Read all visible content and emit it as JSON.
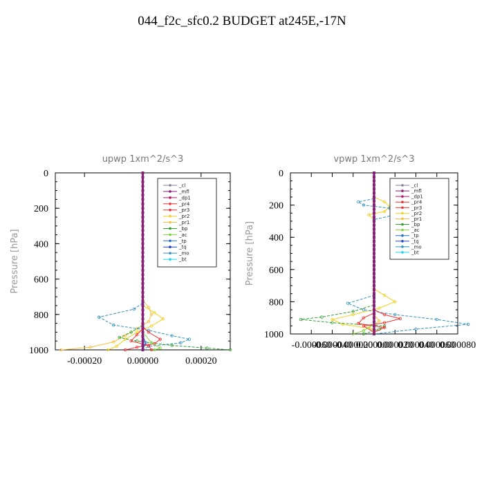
{
  "title": "044_f2c_sfc0.2  BUDGET at245E,-17N",
  "colors": {
    "_cl": "#7f7f9f",
    "_mfl": "#8a1f7a",
    "_dp1": "#c01060",
    "_pr4": "#ee3030",
    "_pr3": "#ee3030",
    "_pr2": "#f0d020",
    "_pr1": "#f5c040",
    "_bp": "#30a030",
    "_ac": "#80d040",
    "_tp": "#2070c0",
    "_tq": "#2040c0",
    "_mo": "#3090c0",
    "_bt": "#20d0f0"
  },
  "chart_data": [
    {
      "type": "line",
      "title": "upwp    1xm^2/s^3",
      "ylabel": "Pressure [hPa]",
      "ylim": [
        0,
        1000
      ],
      "yticks": [
        "0",
        "200",
        "400",
        "600",
        "800",
        "1000"
      ],
      "xlim": [
        -0.0003,
        0.0003
      ],
      "xticks": [
        "-0.00020",
        "0.00000",
        "0.00020"
      ],
      "xtick_values": [
        -0.0002,
        0,
        0.0002
      ],
      "legend": [
        "_cl",
        "_mfl",
        "_dp1",
        "_pr4",
        "_pr3",
        "_pr2",
        "_pr1",
        "_bp",
        "_ac",
        "_tp",
        "_tq",
        "_mo",
        "_bt"
      ],
      "legend_placement": "top-right",
      "series": [
        {
          "name": "_pr1",
          "points": [
            [
              0,
              720
            ],
            [
              2e-05,
              760
            ],
            [
              3e-05,
              800
            ],
            [
              2e-05,
              840
            ],
            [
              -2e-05,
              880
            ],
            [
              -6e-05,
              920
            ],
            [
              -0.0001,
              955
            ],
            [
              -0.00018,
              985
            ],
            [
              -0.00028,
              1000
            ]
          ]
        },
        {
          "name": "_pr2",
          "points": [
            [
              0,
              750
            ],
            [
              4e-05,
              790
            ],
            [
              7e-05,
              825
            ],
            [
              3e-05,
              865
            ],
            [
              -2e-05,
              900
            ],
            [
              -6e-05,
              940
            ],
            [
              -9e-05,
              980
            ],
            [
              -0.00012,
              1000
            ]
          ]
        },
        {
          "name": "_mo",
          "points": [
            [
              0,
              735
            ],
            [
              -3e-05,
              770
            ],
            [
              -0.00015,
              815
            ],
            [
              -0.0001,
              860
            ],
            [
              2e-05,
              890
            ],
            [
              0.0001,
              920
            ],
            [
              0.00016,
              940
            ],
            [
              0.00013,
              960
            ],
            [
              2e-05,
              980
            ],
            [
              0,
              1000
            ]
          ]
        },
        {
          "name": "_bp",
          "points": [
            [
              0,
              860
            ],
            [
              -4e-05,
              900
            ],
            [
              -8e-05,
              930
            ],
            [
              -2e-05,
              950
            ],
            [
              0.0001,
              975
            ],
            [
              0.00022,
              990
            ],
            [
              0.0003,
              1000
            ]
          ]
        },
        {
          "name": "_pr4",
          "points": [
            [
              0,
              870
            ],
            [
              2e-05,
              900
            ],
            [
              6e-05,
              940
            ],
            [
              4e-05,
              965
            ],
            [
              -2e-05,
              985
            ],
            [
              -6e-05,
              1000
            ]
          ]
        },
        {
          "name": "_pr3",
          "points": [
            [
              0,
              880
            ],
            [
              -2e-05,
              915
            ],
            [
              -4e-05,
              950
            ],
            [
              2e-05,
              975
            ],
            [
              3e-05,
              1000
            ]
          ]
        },
        {
          "name": "_ac",
          "points": [
            [
              0,
              900
            ],
            [
              3e-05,
              960
            ],
            [
              6e-05,
              990
            ],
            [
              4e-05,
              1000
            ]
          ]
        },
        {
          "name": "_tp",
          "points": [
            [
              0,
              920
            ],
            [
              1e-05,
              960
            ],
            [
              0,
              1000
            ]
          ]
        },
        {
          "name": "_mfl",
          "points": [
            [
              0,
              0
            ],
            [
              0,
              1000
            ]
          ]
        }
      ]
    },
    {
      "type": "line",
      "title": "vpwp    1xm^2/s^3",
      "ylabel": "Pressure [hPa]",
      "ylim": [
        0,
        1000
      ],
      "yticks": [
        "0",
        "200",
        "400",
        "600",
        "800",
        "1000"
      ],
      "xlim": [
        -8e-05,
        8e-05
      ],
      "xticks": [
        "-0.000060",
        "-0.000040",
        "-0.000020",
        "0.000000",
        "0.000020",
        "0.000040",
        "0.000060",
        "0.000080"
      ],
      "xtick_values": [
        -6e-05,
        -4e-05,
        -2e-05,
        0,
        2e-05,
        4e-05,
        6e-05,
        8e-05
      ],
      "legend": [
        "_cl",
        "_mfl",
        "_dp1",
        "_pr4",
        "_pr3",
        "_pr2",
        "_pr1",
        "_bp",
        "_ac",
        "_tp",
        "_tq",
        "_mo",
        "_bt"
      ],
      "legend_placement": "top-right",
      "series": [
        {
          "name": "_pr2",
          "points": [
            [
              0,
              150
            ],
            [
              1e-05,
              180
            ],
            [
              1.5e-05,
              210
            ],
            [
              1e-05,
              240
            ],
            [
              -5e-06,
              260
            ],
            [
              0,
              290
            ],
            [
              0,
              720
            ],
            [
              1e-05,
              760
            ],
            [
              2e-05,
              800
            ],
            [
              5e-06,
              840
            ],
            [
              -2e-05,
              880
            ],
            [
              -4e-05,
              910
            ],
            [
              -3e-05,
              940
            ],
            [
              0,
              970
            ]
          ]
        },
        {
          "name": "_mo",
          "points": [
            [
              0,
              160
            ],
            [
              -1.5e-05,
              180
            ],
            [
              -1e-05,
              200
            ],
            [
              1.5e-05,
              220
            ],
            [
              2e-05,
              260
            ],
            [
              0,
              290
            ],
            [
              0,
              760
            ],
            [
              -2.5e-05,
              810
            ],
            [
              -1e-05,
              850
            ],
            [
              2e-05,
              880
            ],
            [
              6e-05,
              910
            ],
            [
              9e-05,
              940
            ],
            [
              4e-05,
              970
            ],
            [
              0,
              1000
            ]
          ]
        },
        {
          "name": "_bp",
          "points": [
            [
              0,
              820
            ],
            [
              -2e-05,
              860
            ],
            [
              -5e-05,
              895
            ],
            [
              -7e-05,
              910
            ],
            [
              -4e-05,
              930
            ],
            [
              1e-05,
              950
            ],
            [
              5e-06,
              970
            ],
            [
              -1e-05,
              1000
            ]
          ]
        },
        {
          "name": "_pr4",
          "points": [
            [
              0,
              850
            ],
            [
              1e-05,
              880
            ],
            [
              2.5e-05,
              905
            ],
            [
              1e-05,
              930
            ],
            [
              -1e-05,
              950
            ],
            [
              0,
              990
            ]
          ]
        },
        {
          "name": "_pr3",
          "points": [
            [
              0,
              870
            ],
            [
              -1e-05,
              900
            ],
            [
              -1.5e-05,
              935
            ],
            [
              1e-05,
              960
            ],
            [
              0,
              990
            ]
          ]
        },
        {
          "name": "_pr1",
          "points": [
            [
              0,
              880
            ],
            [
              5e-06,
              920
            ],
            [
              -5e-06,
              960
            ],
            [
              0,
              990
            ]
          ]
        },
        {
          "name": "_ac",
          "points": [
            [
              0,
              940
            ],
            [
              -1e-05,
              980
            ],
            [
              -2e-05,
              1000
            ]
          ]
        },
        {
          "name": "_mfl",
          "points": [
            [
              0,
              0
            ],
            [
              0,
              1000
            ]
          ]
        }
      ]
    }
  ]
}
